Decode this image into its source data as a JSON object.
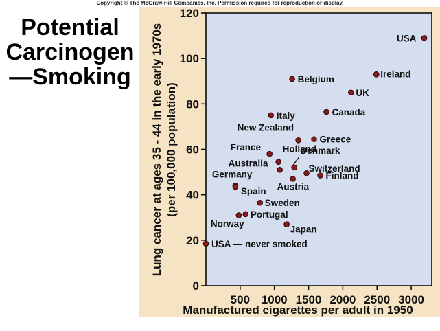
{
  "header": {
    "copyright": "Copyright © The McGraw-Hill Companies, Inc. Permission required for reproduction or display."
  },
  "slide": {
    "title_lines": [
      "Potential",
      "Carcinogen",
      "—Smoking"
    ]
  },
  "colors": {
    "panel_bg": "#f5e3c4",
    "plot_bg": "#d5deef",
    "point_fill": "#8b1a1a",
    "point_stroke": "#2a0505",
    "axis": "#000000"
  },
  "chart_data": {
    "type": "scatter",
    "title": "",
    "xlabel": "Manufactured cigarettes per adult in 1950",
    "ylabel_lines": [
      "Lung cancer at ages 35 - 44 in the early 1970s",
      "(per 100,000 population)"
    ],
    "xlim": [
      0,
      3300
    ],
    "ylim": [
      0,
      120
    ],
    "xticks": [
      500,
      1000,
      1500,
      2000,
      2500,
      3000
    ],
    "yticks": [
      0,
      20,
      40,
      60,
      80,
      100,
      120
    ],
    "grid": false,
    "points": [
      {
        "label": "USA",
        "x": 3190,
        "y": 109
      },
      {
        "label": "Ireland",
        "x": 2490,
        "y": 93
      },
      {
        "label": "UK",
        "x": 2120,
        "y": 85
      },
      {
        "label": "Belgium",
        "x": 1260,
        "y": 91
      },
      {
        "label": "Canada",
        "x": 1760,
        "y": 76.5
      },
      {
        "label": "Italy",
        "x": 950,
        "y": 75
      },
      {
        "label": "New Zealand",
        "x": 1350,
        "y": 64
      },
      {
        "label": "Greece",
        "x": 1580,
        "y": 64.5
      },
      {
        "label": "France",
        "x": 930,
        "y": 58
      },
      {
        "label": "Holland",
        "x": 1060,
        "y": 54.5
      },
      {
        "label": "Denmark",
        "x": 1290,
        "y": 52
      },
      {
        "label": "Switzerland",
        "x": 1470,
        "y": 49.5
      },
      {
        "label": "Australia",
        "x": 1080,
        "y": 51
      },
      {
        "label": "Finland",
        "x": 1670,
        "y": 48.5
      },
      {
        "label": "Austria",
        "x": 1270,
        "y": 47
      },
      {
        "label": "Germany",
        "x": 430,
        "y": 44
      },
      {
        "label": "Spain",
        "x": 430,
        "y": 43.5
      },
      {
        "label": "Sweden",
        "x": 790,
        "y": 36.5
      },
      {
        "label": "Portugal",
        "x": 580,
        "y": 31.5
      },
      {
        "label": "Norway",
        "x": 480,
        "y": 31
      },
      {
        "label": "Japan",
        "x": 1180,
        "y": 27
      },
      {
        "label": "USA — never smoked",
        "x": 0,
        "y": 18.5
      }
    ]
  }
}
